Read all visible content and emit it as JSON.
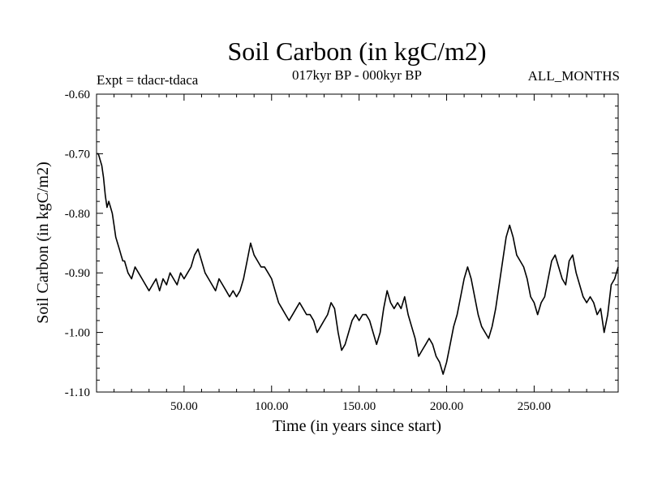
{
  "chart_data": {
    "type": "line",
    "title": "Soil Carbon (in kgC/m2)",
    "subtitle": "017kyr BP - 000kyr BP",
    "left_label": "Expt = tdacr-tdaca",
    "right_label": "ALL_MONTHS",
    "xlabel": "Time (in years since start)",
    "ylabel": "Soil Carbon (in kgC/m2)",
    "xlim": [
      0,
      298
    ],
    "ylim": [
      -1.1,
      -0.6
    ],
    "x_major_ticks": [
      50,
      100,
      150,
      200,
      250
    ],
    "x_tick_labels": [
      "50.00",
      "100.00",
      "150.00",
      "200.00",
      "250.00"
    ],
    "y_major_ticks": [
      -0.6,
      -0.7,
      -0.8,
      -0.9,
      -1.0,
      -1.1
    ],
    "y_tick_labels": [
      "-0.60",
      "-0.70",
      "-0.80",
      "-0.90",
      "-1.00",
      "-1.10"
    ],
    "grid": false,
    "series": [
      {
        "name": "Soil Carbon",
        "color": "#000000",
        "x": [
          0,
          1,
          2,
          3,
          4,
          5,
          6,
          7,
          8,
          9,
          10,
          11,
          12,
          13,
          14,
          15,
          16,
          18,
          20,
          22,
          24,
          26,
          28,
          30,
          32,
          34,
          36,
          38,
          40,
          42,
          44,
          46,
          48,
          50,
          52,
          54,
          56,
          58,
          60,
          62,
          64,
          66,
          68,
          70,
          72,
          74,
          76,
          78,
          80,
          82,
          84,
          86,
          88,
          90,
          92,
          94,
          96,
          98,
          100,
          102,
          104,
          106,
          108,
          110,
          112,
          114,
          116,
          118,
          120,
          122,
          124,
          126,
          128,
          130,
          132,
          134,
          136,
          138,
          140,
          142,
          144,
          146,
          148,
          150,
          152,
          154,
          156,
          158,
          160,
          162,
          164,
          166,
          168,
          170,
          172,
          174,
          176,
          178,
          180,
          182,
          184,
          186,
          188,
          190,
          192,
          194,
          196,
          198,
          200,
          202,
          204,
          206,
          208,
          210,
          212,
          214,
          216,
          218,
          220,
          222,
          224,
          226,
          228,
          230,
          232,
          234,
          236,
          238,
          240,
          242,
          244,
          246,
          248,
          250,
          252,
          254,
          256,
          258,
          260,
          262,
          264,
          266,
          268,
          270,
          272,
          274,
          276,
          278,
          280,
          282,
          284,
          286,
          288,
          290,
          292,
          294,
          296,
          298
        ],
        "values": [
          -0.7,
          -0.7,
          -0.71,
          -0.72,
          -0.74,
          -0.77,
          -0.79,
          -0.78,
          -0.79,
          -0.8,
          -0.82,
          -0.84,
          -0.85,
          -0.86,
          -0.87,
          -0.88,
          -0.88,
          -0.9,
          -0.91,
          -0.89,
          -0.9,
          -0.91,
          -0.92,
          -0.93,
          -0.92,
          -0.91,
          -0.93,
          -0.91,
          -0.92,
          -0.9,
          -0.91,
          -0.92,
          -0.9,
          -0.91,
          -0.9,
          -0.89,
          -0.87,
          -0.86,
          -0.88,
          -0.9,
          -0.91,
          -0.92,
          -0.93,
          -0.91,
          -0.92,
          -0.93,
          -0.94,
          -0.93,
          -0.94,
          -0.93,
          -0.91,
          -0.88,
          -0.85,
          -0.87,
          -0.88,
          -0.89,
          -0.89,
          -0.9,
          -0.91,
          -0.93,
          -0.95,
          -0.96,
          -0.97,
          -0.98,
          -0.97,
          -0.96,
          -0.95,
          -0.96,
          -0.97,
          -0.97,
          -0.98,
          -1.0,
          -0.99,
          -0.98,
          -0.97,
          -0.95,
          -0.96,
          -1.0,
          -1.03,
          -1.02,
          -1.0,
          -0.98,
          -0.97,
          -0.98,
          -0.97,
          -0.97,
          -0.98,
          -1.0,
          -1.02,
          -1.0,
          -0.96,
          -0.93,
          -0.95,
          -0.96,
          -0.95,
          -0.96,
          -0.94,
          -0.97,
          -0.99,
          -1.01,
          -1.04,
          -1.03,
          -1.02,
          -1.01,
          -1.02,
          -1.04,
          -1.05,
          -1.07,
          -1.05,
          -1.02,
          -0.99,
          -0.97,
          -0.94,
          -0.91,
          -0.89,
          -0.91,
          -0.94,
          -0.97,
          -0.99,
          -1.0,
          -1.01,
          -0.99,
          -0.96,
          -0.92,
          -0.88,
          -0.84,
          -0.82,
          -0.84,
          -0.87,
          -0.88,
          -0.89,
          -0.91,
          -0.94,
          -0.95,
          -0.97,
          -0.95,
          -0.94,
          -0.91,
          -0.88,
          -0.87,
          -0.89,
          -0.91,
          -0.92,
          -0.88,
          -0.87,
          -0.9,
          -0.92,
          -0.94,
          -0.95,
          -0.94,
          -0.95,
          -0.97,
          -0.96,
          -1.0,
          -0.97,
          -0.92,
          -0.91,
          -0.89
        ]
      }
    ]
  }
}
